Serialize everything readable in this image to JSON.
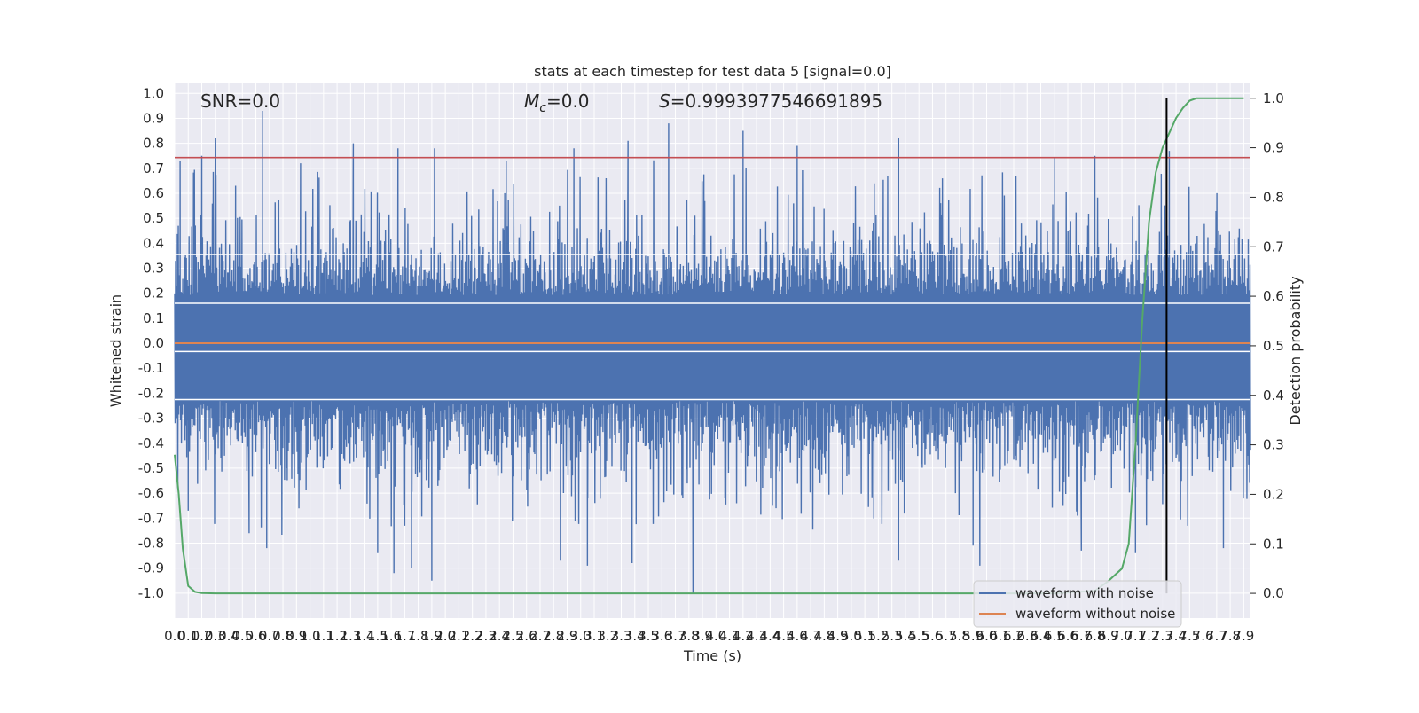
{
  "chart_data": {
    "type": "line",
    "title": "stats at each timestep for test data 5 [signal=0.0]",
    "xlabel": "Time (s)",
    "ylabel": "Whitened strain",
    "y2label": "Detection probability",
    "xlim": [
      0.0,
      7.95
    ],
    "ylim": [
      -1.1,
      1.04
    ],
    "y2lim": [
      -0.05,
      1.03
    ],
    "x_ticks": [
      "0.0",
      "0.1",
      "0.2",
      "0.3",
      "0.4",
      "0.5",
      "0.6",
      "0.7",
      "0.8",
      "0.9",
      "1.0",
      "1.1",
      "1.2",
      "1.3",
      "1.4",
      "1.5",
      "1.6",
      "1.7",
      "1.8",
      "1.9",
      "2.0",
      "2.1",
      "2.2",
      "2.3",
      "2.4",
      "2.5",
      "2.6",
      "2.7",
      "2.8",
      "2.9",
      "3.0",
      "3.1",
      "3.2",
      "3.3",
      "3.4",
      "3.5",
      "3.6",
      "3.7",
      "3.8",
      "3.9",
      "4.0",
      "4.1",
      "4.2",
      "4.3",
      "4.4",
      "4.5",
      "4.6",
      "4.7",
      "4.8",
      "4.9",
      "5.0",
      "5.1",
      "5.2",
      "5.3",
      "5.4",
      "5.5",
      "5.6",
      "5.7",
      "5.8",
      "5.9",
      "6.0",
      "6.1",
      "6.2",
      "6.3",
      "6.4",
      "6.5",
      "6.6",
      "6.7",
      "6.8",
      "6.9",
      "7.0",
      "7.1",
      "7.2",
      "7.3",
      "7.4",
      "7.5",
      "7.6",
      "7.7",
      "7.8",
      "7.9"
    ],
    "y_ticks": [
      "1.0",
      "0.9",
      "0.8",
      "0.7",
      "0.6",
      "0.5",
      "0.4",
      "0.3",
      "0.2",
      "0.1",
      "0.0",
      "-0.1",
      "-0.2",
      "-0.3",
      "-0.4",
      "-0.5",
      "-0.6",
      "-0.7",
      "-0.8",
      "-0.9",
      "-1.0"
    ],
    "y2_ticks": [
      "1.0",
      "0.9",
      "0.8",
      "0.7",
      "0.6",
      "0.5",
      "0.4",
      "0.3",
      "0.2",
      "0.1",
      "0.0"
    ],
    "annotations": {
      "snr": "SNR=0.0",
      "mc_symbol": "M",
      "mc_sub": "c",
      "mc_value": "=0.0",
      "s_symbol": "S",
      "s_value": "=0.9993977546691895"
    },
    "series": [
      {
        "name": "waveform with noise",
        "color": "#4c72b0",
        "axis": "left",
        "envelope": {
          "typical_band": [
            -0.42,
            0.35
          ],
          "max_peak": 0.93,
          "min_trough": -1.0
        },
        "peaks": [
          {
            "x": 0.04,
            "y": 0.73
          },
          {
            "x": 0.2,
            "y": 0.75
          },
          {
            "x": 0.3,
            "y": 0.82
          },
          {
            "x": 0.45,
            "y": 0.63
          },
          {
            "x": 0.65,
            "y": 0.93
          },
          {
            "x": 0.93,
            "y": 0.72
          },
          {
            "x": 1.32,
            "y": 0.8
          },
          {
            "x": 1.65,
            "y": 0.78
          },
          {
            "x": 1.92,
            "y": 0.78
          },
          {
            "x": 2.45,
            "y": 0.73
          },
          {
            "x": 2.95,
            "y": 0.78
          },
          {
            "x": 3.35,
            "y": 0.81
          },
          {
            "x": 3.65,
            "y": 0.88
          },
          {
            "x": 4.2,
            "y": 0.72
          },
          {
            "x": 4.2,
            "y": 0.85
          },
          {
            "x": 4.6,
            "y": 0.79
          },
          {
            "x": 5.35,
            "y": 0.82
          },
          {
            "x": 6.5,
            "y": 0.74
          },
          {
            "x": 6.8,
            "y": 0.75
          },
          {
            "x": 7.35,
            "y": 0.77
          }
        ],
        "troughs": [
          {
            "x": 0.1,
            "y": -0.67
          },
          {
            "x": 0.55,
            "y": -0.76
          },
          {
            "x": 0.68,
            "y": -0.82
          },
          {
            "x": 1.5,
            "y": -0.84
          },
          {
            "x": 1.62,
            "y": -0.92
          },
          {
            "x": 1.75,
            "y": -0.9
          },
          {
            "x": 1.9,
            "y": -0.95
          },
          {
            "x": 2.85,
            "y": -0.87
          },
          {
            "x": 3.05,
            "y": -0.89
          },
          {
            "x": 3.38,
            "y": -0.88
          },
          {
            "x": 3.83,
            "y": -1.0
          },
          {
            "x": 5.35,
            "y": -0.87
          },
          {
            "x": 5.9,
            "y": -0.81
          },
          {
            "x": 5.95,
            "y": -0.89
          },
          {
            "x": 6.7,
            "y": -0.83
          },
          {
            "x": 7.1,
            "y": -0.84
          },
          {
            "x": 7.75,
            "y": -0.82
          }
        ]
      },
      {
        "name": "waveform without noise",
        "color": "#dd8452",
        "axis": "left",
        "x": [
          0.0,
          7.95
        ],
        "y": [
          0.0,
          0.0
        ]
      },
      {
        "color": "#55a868",
        "axis": "right",
        "x": [
          0.0,
          0.03,
          0.06,
          0.1,
          0.15,
          0.2,
          0.3,
          0.5,
          1.0,
          3.0,
          5.0,
          6.5,
          6.8,
          6.9,
          7.0,
          7.05,
          7.1,
          7.15,
          7.2,
          7.25,
          7.3,
          7.35,
          7.4,
          7.45,
          7.5,
          7.55,
          7.6,
          7.7,
          7.8,
          7.9
        ],
        "y": [
          0.28,
          0.2,
          0.09,
          0.015,
          0.003,
          0.0005,
          0.0,
          0.0,
          0.0,
          0.0,
          0.0,
          0.0,
          0.005,
          0.025,
          0.05,
          0.1,
          0.3,
          0.55,
          0.75,
          0.85,
          0.9,
          0.93,
          0.96,
          0.98,
          0.995,
          1.0,
          1.0,
          1.0,
          1.0,
          1.0
        ]
      }
    ],
    "hlines": [
      {
        "y": 0.743,
        "color": "#c44e52",
        "axis": "left"
      }
    ],
    "vlines": [
      {
        "x": 7.33,
        "y2_range": [
          0.0,
          1.0
        ],
        "color": "#000000"
      }
    ],
    "legend": {
      "position": "lower-right",
      "entries": [
        {
          "label": "waveform with noise",
          "color": "#4c72b0"
        },
        {
          "label": "waveform without noise",
          "color": "#dd8452"
        }
      ]
    },
    "grid": true,
    "background": "#eaeaf2"
  }
}
